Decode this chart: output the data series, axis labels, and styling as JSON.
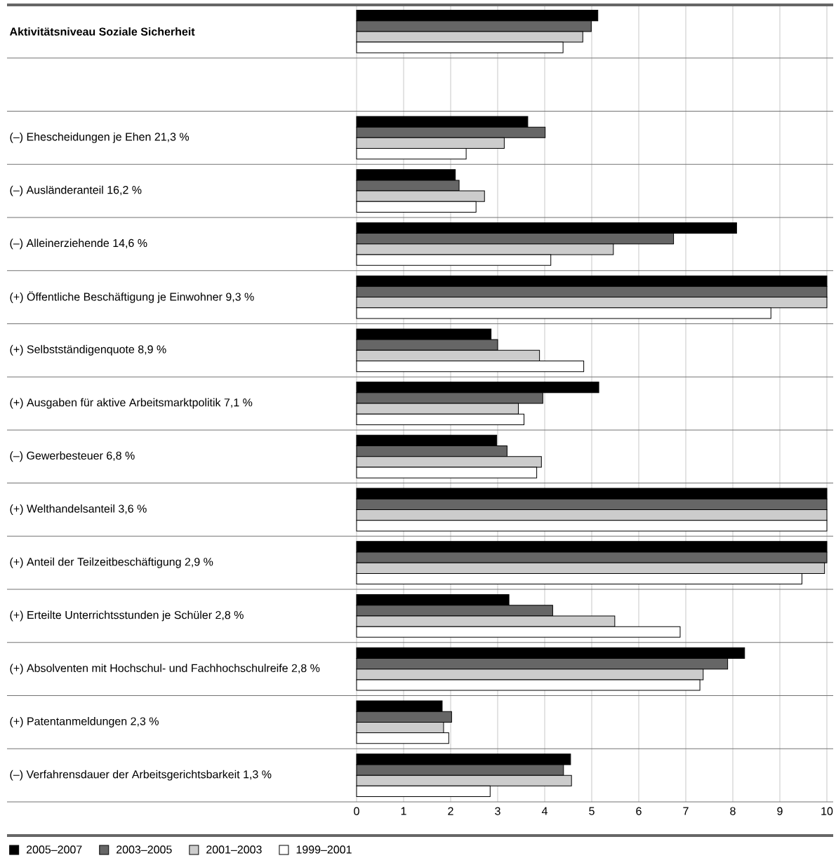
{
  "chart_data": {
    "type": "bar",
    "orientation": "horizontal",
    "categories": [
      "Aktivitätsniveau Soziale Sicherheit",
      null,
      "(–) Ehescheidungen je Ehen 21,3 %",
      "(–) Ausländeranteil 16,2 %",
      "(–) Alleinerziehende 14,6 %",
      "(+) Öffentliche Beschäftigung je Einwohner 9,3 %",
      "(+) Selbstständigenquote 8,9 %",
      "(+) Ausgaben für aktive Arbeitsmarktpolitik 7,1 %",
      "(–) Gewerbesteuer 6,8 %",
      "(+) Welthandelsanteil 3,6 %",
      "(+) Anteil der Teilzeitbeschäftigung 2,9 %",
      "(+) Erteilte Unterrichtsstunden je Schüler 2,8 %",
      "(+) Absolventen mit Hochschul- und Fachhochschulreife 2,8 %",
      "(+) Patentanmeldungen 2,3 %",
      "(–) Verfahrensdauer der Arbeitsgerichtsbarkeit 1,3 %"
    ],
    "series": [
      {
        "name": "2005–2007",
        "color": "#000000",
        "values": [
          5.13,
          null,
          3.64,
          2.1,
          8.08,
          10,
          2.86,
          5.15,
          2.98,
          10,
          10,
          3.24,
          8.25,
          1.82,
          4.55
        ]
      },
      {
        "name": "2003–2005",
        "color": "#666666",
        "values": [
          4.99,
          null,
          4.01,
          2.18,
          6.74,
          10,
          3.0,
          3.96,
          3.2,
          10,
          10,
          4.17,
          7.89,
          2.02,
          4.4
        ]
      },
      {
        "name": "2001–2003",
        "color": "#cccccc",
        "values": [
          4.81,
          null,
          3.14,
          2.72,
          5.46,
          10,
          3.89,
          3.44,
          3.93,
          10,
          9.95,
          5.49,
          7.37,
          1.85,
          4.57
        ]
      },
      {
        "name": "1999–2001",
        "color": "#ffffff",
        "values": [
          4.39,
          null,
          2.33,
          2.54,
          4.13,
          8.81,
          4.83,
          3.56,
          3.83,
          10,
          9.47,
          6.88,
          7.3,
          1.96,
          2.84
        ]
      }
    ],
    "xlim": [
      0,
      10
    ],
    "xticks": [
      0,
      1,
      2,
      3,
      4,
      5,
      6,
      7,
      8,
      9,
      10
    ],
    "grid": "x",
    "legend": "bottom"
  }
}
